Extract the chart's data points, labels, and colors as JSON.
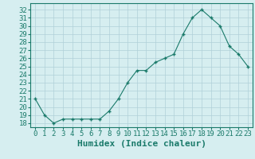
{
  "x": [
    0,
    1,
    2,
    3,
    4,
    5,
    6,
    7,
    8,
    9,
    10,
    11,
    12,
    13,
    14,
    15,
    16,
    17,
    18,
    19,
    20,
    21,
    22,
    23
  ],
  "y": [
    21,
    19,
    18,
    18.5,
    18.5,
    18.5,
    18.5,
    18.5,
    19.5,
    21,
    23,
    24.5,
    24.5,
    25.5,
    26,
    26.5,
    29,
    31,
    32,
    31,
    30,
    27.5,
    26.5,
    25
  ],
  "line_color": "#1a7a6a",
  "marker": "+",
  "bg_color": "#d6eef0",
  "grid_color": "#b0d0d8",
  "xlabel": "Humidex (Indice chaleur)",
  "ylabel_ticks": [
    18,
    19,
    20,
    21,
    22,
    23,
    24,
    25,
    26,
    27,
    28,
    29,
    30,
    31,
    32
  ],
  "ylim": [
    17.5,
    32.8
  ],
  "xlim": [
    -0.5,
    23.5
  ],
  "xlabel_fontsize": 8,
  "tick_fontsize": 6.5,
  "markersize": 3
}
